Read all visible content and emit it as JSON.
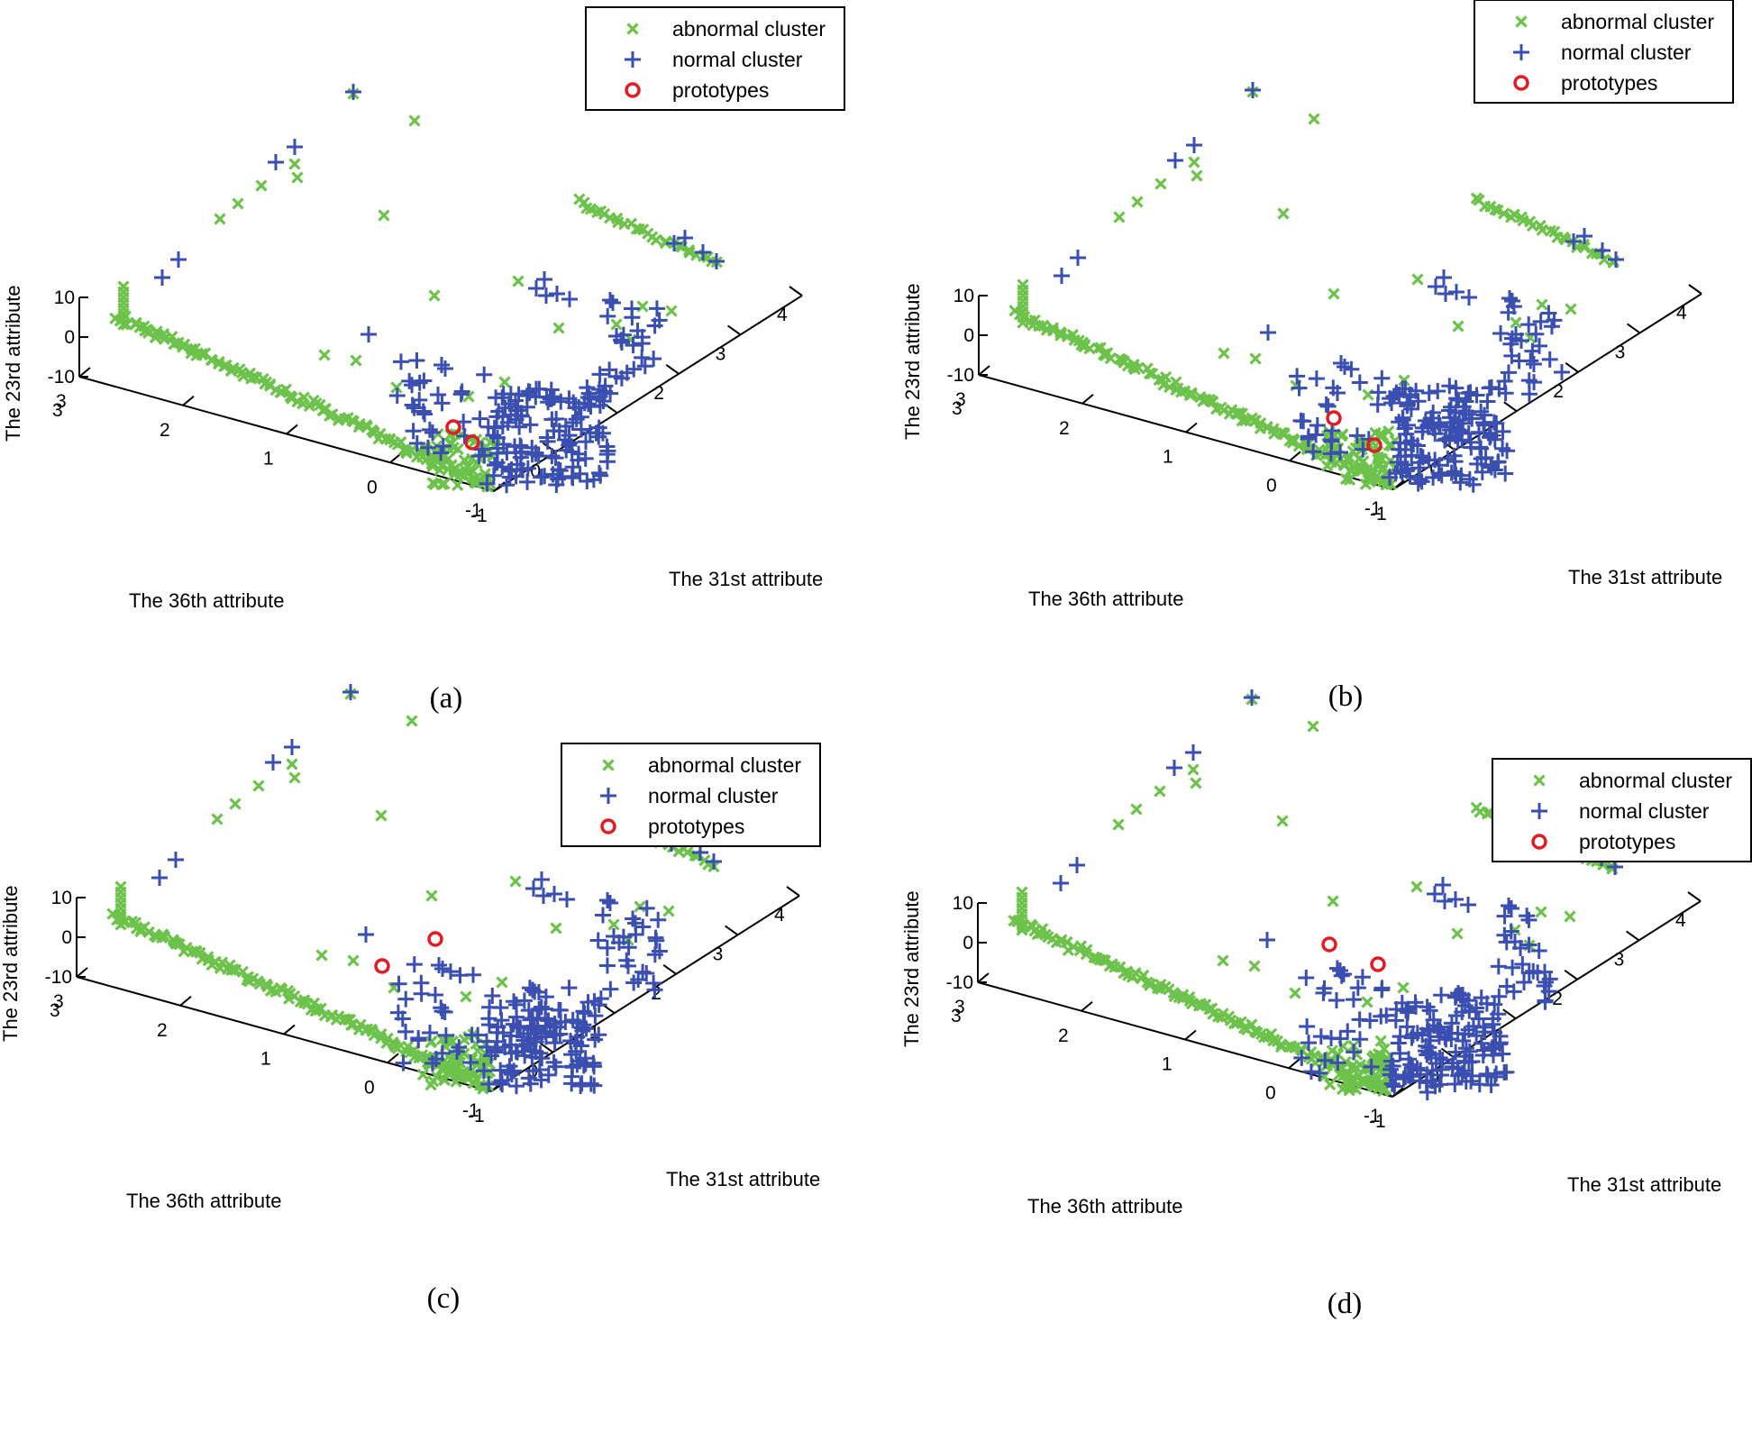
{
  "figure": {
    "panels": [
      {
        "caption": "(a)"
      },
      {
        "caption": "(b)"
      },
      {
        "caption": "(c)"
      },
      {
        "caption": "(d)"
      }
    ]
  },
  "colors": {
    "abnormal": "#6cc24a",
    "normal": "#3a4fb0",
    "prototype": "#e31b23",
    "axis": "#000000"
  },
  "chart_data": [
    {
      "type": "scatter",
      "dimensions": 3,
      "xlabel": "The 36th attribute",
      "ylabel": "The 31st attribute",
      "zlabel": "The 23rd attribute",
      "x_ticks": [
        "3",
        "2",
        "1",
        "0",
        "-1"
      ],
      "y_ticks": [
        "-1",
        "0",
        "1",
        "2",
        "3",
        "4"
      ],
      "z_ticks": [
        "10",
        "0",
        "-10"
      ],
      "legend": {
        "position": "top-right",
        "entries": [
          "abnormal cluster",
          "normal cluster",
          "prototypes"
        ],
        "markers": [
          "x",
          "+",
          "o"
        ]
      },
      "prototypes": [
        {
          "x": -0.25,
          "y": 0.2,
          "z": 0
        },
        {
          "x": -0.55,
          "y": 0.35,
          "z": 0
        }
      ]
    },
    {
      "type": "scatter",
      "dimensions": 3,
      "xlabel": "The 36th attribute",
      "ylabel": "The 31st attribute",
      "zlabel": "The 23rd attribute",
      "x_ticks": [
        "3",
        "2",
        "1",
        "0",
        "-1"
      ],
      "y_ticks": [
        "-1",
        "0",
        "1",
        "2",
        "3",
        "4"
      ],
      "z_ticks": [
        "10",
        "0",
        "-10"
      ],
      "legend": {
        "position": "top-right",
        "entries": [
          "abnormal cluster",
          "normal cluster",
          "prototypes"
        ],
        "markers": [
          "x",
          "+",
          "o"
        ]
      },
      "prototypes": [
        {
          "x": 0.05,
          "y": 0.1,
          "z": 0
        },
        {
          "x": -0.7,
          "y": 0.3,
          "z": 0
        }
      ]
    },
    {
      "type": "scatter",
      "dimensions": 3,
      "xlabel": "The 36th attribute",
      "ylabel": "The 31st attribute",
      "zlabel": "The 23rd attribute",
      "x_ticks": [
        "3",
        "2",
        "1",
        "0",
        "-1"
      ],
      "y_ticks": [
        "-1",
        "0",
        "1",
        "2",
        "3",
        "4"
      ],
      "z_ticks": [
        "10",
        "0",
        "-10"
      ],
      "legend": {
        "position": "top-right",
        "entries": [
          "abnormal cluster",
          "normal cluster",
          "prototypes"
        ],
        "markers": [
          "x",
          "+",
          "o"
        ]
      },
      "prototypes": [
        {
          "x": -0.1,
          "y": 0.1,
          "z": 0
        },
        {
          "x": -0.65,
          "y": 0.1,
          "z": 0
        }
      ]
    },
    {
      "type": "scatter",
      "dimensions": 3,
      "xlabel": "The 36th attribute",
      "ylabel": "The 31st attribute",
      "zlabel": "The 23rd attribute",
      "x_ticks": [
        "3",
        "2",
        "1",
        "0",
        "-1"
      ],
      "y_ticks": [
        "-1",
        "0",
        "1",
        "2",
        "3",
        "4"
      ],
      "z_ticks": [
        "10",
        "0",
        "-10"
      ],
      "legend": {
        "position": "top-right",
        "entries": [
          "abnormal cluster",
          "normal cluster",
          "prototypes"
        ],
        "markers": [
          "x",
          "+",
          "o"
        ]
      },
      "prototypes": [
        {
          "x": 0.15,
          "y": 0.05,
          "z": 0
        },
        {
          "x": -0.95,
          "y": 0.05,
          "z": 0
        }
      ]
    }
  ]
}
